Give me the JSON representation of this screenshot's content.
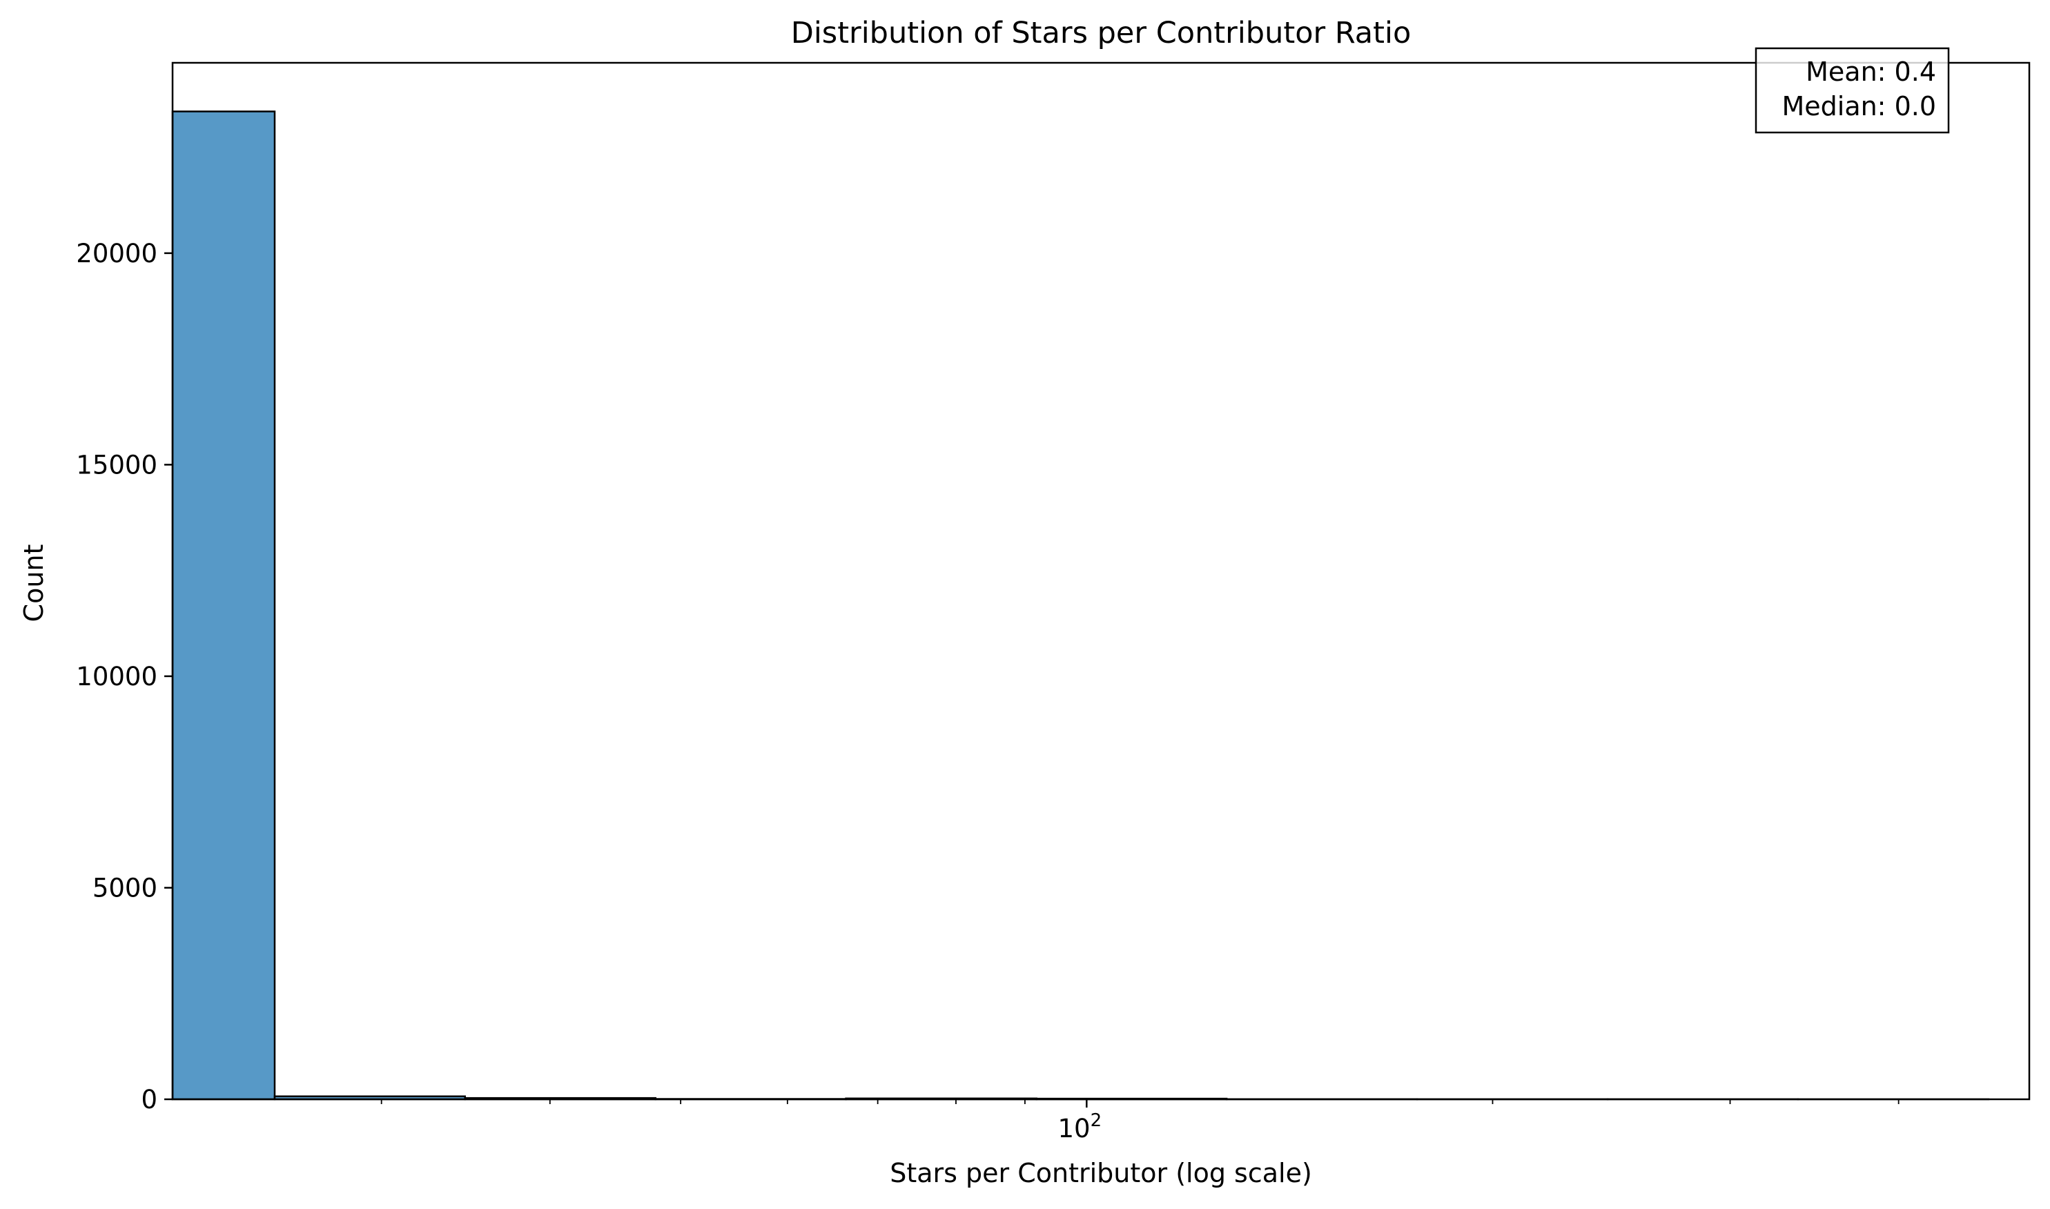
{
  "chart_data": {
    "type": "bar",
    "title": "Distribution of Stars per Contributor Ratio",
    "xlabel": "Stars per Contributor (log scale)",
    "ylabel": "Count",
    "x_scale": "log",
    "xlim": [
      21,
      500
    ],
    "ylim": [
      0,
      24500
    ],
    "grid": false,
    "bar_color": "#5799c7",
    "edge_color": "#000000",
    "x_ticks": [
      {
        "value": 100,
        "label": "10",
        "exponent": "2"
      }
    ],
    "x_minor_ticks": [
      30,
      40,
      50,
      60,
      70,
      80,
      90,
      200,
      300,
      400
    ],
    "y_ticks": [
      0,
      5000,
      10000,
      15000,
      20000
    ],
    "bins": [
      {
        "x0": 21.0,
        "x1": 25.0,
        "count": 23350
      },
      {
        "x0": 25.0,
        "x1": 34.6,
        "count": 70
      },
      {
        "x0": 34.6,
        "x1": 47.9,
        "count": 30
      },
      {
        "x0": 47.9,
        "x1": 66.3,
        "count": 8
      },
      {
        "x0": 66.3,
        "x1": 91.8,
        "count": 20
      },
      {
        "x0": 91.8,
        "x1": 127.0,
        "count": 15
      },
      {
        "x0": 127.0,
        "x1": 175.8,
        "count": 3
      },
      {
        "x0": 175.8,
        "x1": 243.4,
        "count": 2
      },
      {
        "x0": 243.4,
        "x1": 336.9,
        "count": 2
      },
      {
        "x0": 336.9,
        "x1": 466.4,
        "count": 1
      }
    ],
    "annotation": {
      "lines": [
        "Mean: 0.4",
        "Median: 0.0"
      ],
      "position": "top-right"
    }
  }
}
